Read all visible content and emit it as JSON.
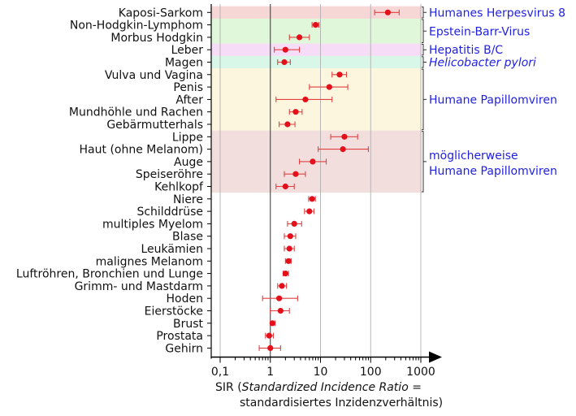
{
  "chart_data": {
    "type": "scatter",
    "title": "",
    "xscale": "log",
    "xlim": [
      0.1,
      1000
    ],
    "xticks": [
      {
        "value": 0.1,
        "label": "0,1"
      },
      {
        "value": 1,
        "label": "1"
      },
      {
        "value": 10,
        "label": "10"
      },
      {
        "value": 100,
        "label": "100"
      },
      {
        "value": 1000,
        "label": "1000"
      }
    ],
    "xlabel_line1_prefix": "SIR (",
    "xlabel_line1_italic": "Standardized Incidence Ratio",
    "xlabel_line1_suffix": " =",
    "xlabel_line2": "standardisiertes Inzidenzverhältnis)",
    "reference_line": 1,
    "rows": [
      {
        "label": "Kaposi-Sarkom",
        "sir": 220,
        "lo": 120,
        "hi": 370
      },
      {
        "label": "Non-Hodgkin-Lymphom",
        "sir": 8.0,
        "lo": 6.8,
        "hi": 9.3
      },
      {
        "label": "Morbus Hodgkin",
        "sir": 3.8,
        "lo": 2.4,
        "hi": 6.0
      },
      {
        "label": "Leber",
        "sir": 2.0,
        "lo": 1.2,
        "hi": 3.8
      },
      {
        "label": "Magen",
        "sir": 1.9,
        "lo": 1.4,
        "hi": 2.5
      },
      {
        "label": "Vulva und Vagina",
        "sir": 24,
        "lo": 17,
        "hi": 33
      },
      {
        "label": "Penis",
        "sir": 15,
        "lo": 6,
        "hi": 35
      },
      {
        "label": "After",
        "sir": 5,
        "lo": 1.3,
        "hi": 17
      },
      {
        "label": "Mundhöhle und Rachen",
        "sir": 3.2,
        "lo": 2.4,
        "hi": 4.3
      },
      {
        "label": "Gebärmutterhals",
        "sir": 2.2,
        "lo": 1.5,
        "hi": 3.1
      },
      {
        "label": "Lippe",
        "sir": 30,
        "lo": 16,
        "hi": 55
      },
      {
        "label": "Haut (ohne Melanom)",
        "sir": 28,
        "lo": 9,
        "hi": 90
      },
      {
        "label": "Auge",
        "sir": 7,
        "lo": 3.8,
        "hi": 13
      },
      {
        "label": "Speiseröhre",
        "sir": 3.2,
        "lo": 1.9,
        "hi": 5.0
      },
      {
        "label": "Kehlkopf",
        "sir": 2.0,
        "lo": 1.3,
        "hi": 3.0
      },
      {
        "label": "Niere",
        "sir": 6.8,
        "lo": 5.8,
        "hi": 7.9
      },
      {
        "label": "Schilddrüse",
        "sir": 6.0,
        "lo": 4.8,
        "hi": 7.4
      },
      {
        "label": "multiples Myelom",
        "sir": 3.0,
        "lo": 2.2,
        "hi": 4.2
      },
      {
        "label": "Blase",
        "sir": 2.5,
        "lo": 1.9,
        "hi": 3.2
      },
      {
        "label": "Leukämien",
        "sir": 2.4,
        "lo": 1.9,
        "hi": 3.0
      },
      {
        "label": "malignes Melanom",
        "sir": 2.3,
        "lo": 2.0,
        "hi": 2.6
      },
      {
        "label": "Luftröhren, Bronchien und Lunge",
        "sir": 2.0,
        "lo": 1.8,
        "hi": 2.3
      },
      {
        "label": "Grimm- und Mastdarm",
        "sir": 1.7,
        "lo": 1.4,
        "hi": 2.1
      },
      {
        "label": "Hoden",
        "sir": 1.5,
        "lo": 0.7,
        "hi": 3.5
      },
      {
        "label": "Eierstöcke",
        "sir": 1.6,
        "lo": 1.0,
        "hi": 2.4
      },
      {
        "label": "Brust",
        "sir": 1.1,
        "lo": 1.0,
        "hi": 1.25
      },
      {
        "label": "Prostata",
        "sir": 0.95,
        "lo": 0.8,
        "hi": 1.15
      },
      {
        "label": "Gehirn",
        "sir": 1.0,
        "lo": 0.6,
        "hi": 1.6
      }
    ],
    "groups": [
      {
        "label": "Humanes Herpesvirus 8",
        "italic": false,
        "from": 0,
        "to": 0,
        "color": "#f7d6d6"
      },
      {
        "label": "Epstein-Barr-Virus",
        "italic": false,
        "from": 1,
        "to": 2,
        "color": "#e1f7d9"
      },
      {
        "label": "Hepatitis B/C",
        "italic": false,
        "from": 3,
        "to": 3,
        "color": "#f6dcf6"
      },
      {
        "label": "Helicobacter pylori",
        "italic": true,
        "from": 4,
        "to": 4,
        "color": "#d9f7e8"
      },
      {
        "label": "Humane Papillomviren",
        "italic": false,
        "from": 5,
        "to": 9,
        "color": "#fdf6de"
      },
      {
        "label": "möglicherweise",
        "label2": "Humane Papillomviren",
        "italic": false,
        "from": 10,
        "to": 14,
        "color": "#f3dede"
      }
    ],
    "colors": {
      "marker": "#e3101c",
      "error_bar": "#e04040",
      "group_text": "#1f1fe0",
      "axis": "#000000",
      "grid": "#b0b0b0"
    }
  }
}
